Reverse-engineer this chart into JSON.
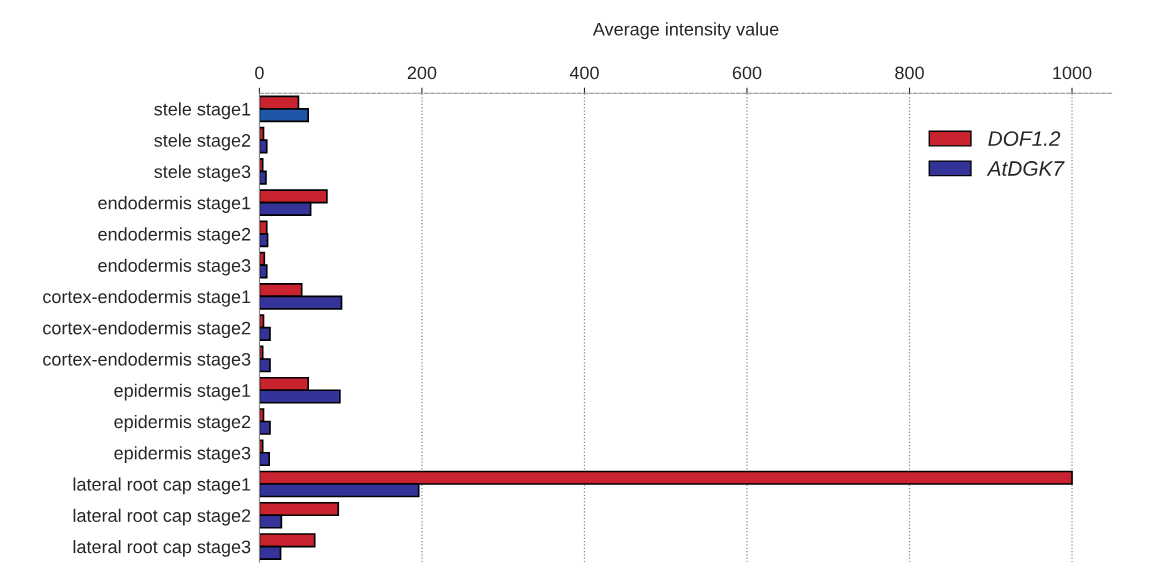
{
  "chart_data": {
    "type": "bar",
    "orientation": "horizontal",
    "xlabel": "Average intensity value",
    "categories": [
      "stele stage1",
      "stele stage2",
      "stele stage3",
      "endodermis stage1",
      "endodermis stage2",
      "endodermis stage3",
      "cortex-endodermis stage1",
      "cortex-endodermis stage2",
      "cortex-endodermis stage3",
      "epidermis stage1",
      "epidermis stage2",
      "epidermis stage3",
      "lateral root cap stage1",
      "lateral root cap stage2",
      "lateral root cap stage3"
    ],
    "series": [
      {
        "name": "DOF1.2",
        "color": "#c8232f",
        "values": [
          48,
          5,
          4,
          83,
          9,
          6,
          52,
          5,
          4,
          60,
          5,
          4,
          1000,
          97,
          68
        ]
      },
      {
        "name": "AtDGK7",
        "color": "#333399",
        "colors": [
          "#1f56a8",
          "#333399",
          "#333399",
          "#333399",
          "#333399",
          "#333399",
          "#333399",
          "#333399",
          "#333399",
          "#333399",
          "#333399",
          "#333399",
          "#333399",
          "#333399",
          "#333399"
        ],
        "values": [
          60,
          9,
          8,
          63,
          10,
          9,
          101,
          13,
          13,
          99,
          13,
          12,
          196,
          27,
          26
        ]
      }
    ],
    "xlim": [
      0,
      1050
    ],
    "xticks": [
      0,
      200,
      400,
      600,
      800,
      1000
    ],
    "grid": "x",
    "legend": "top right"
  }
}
